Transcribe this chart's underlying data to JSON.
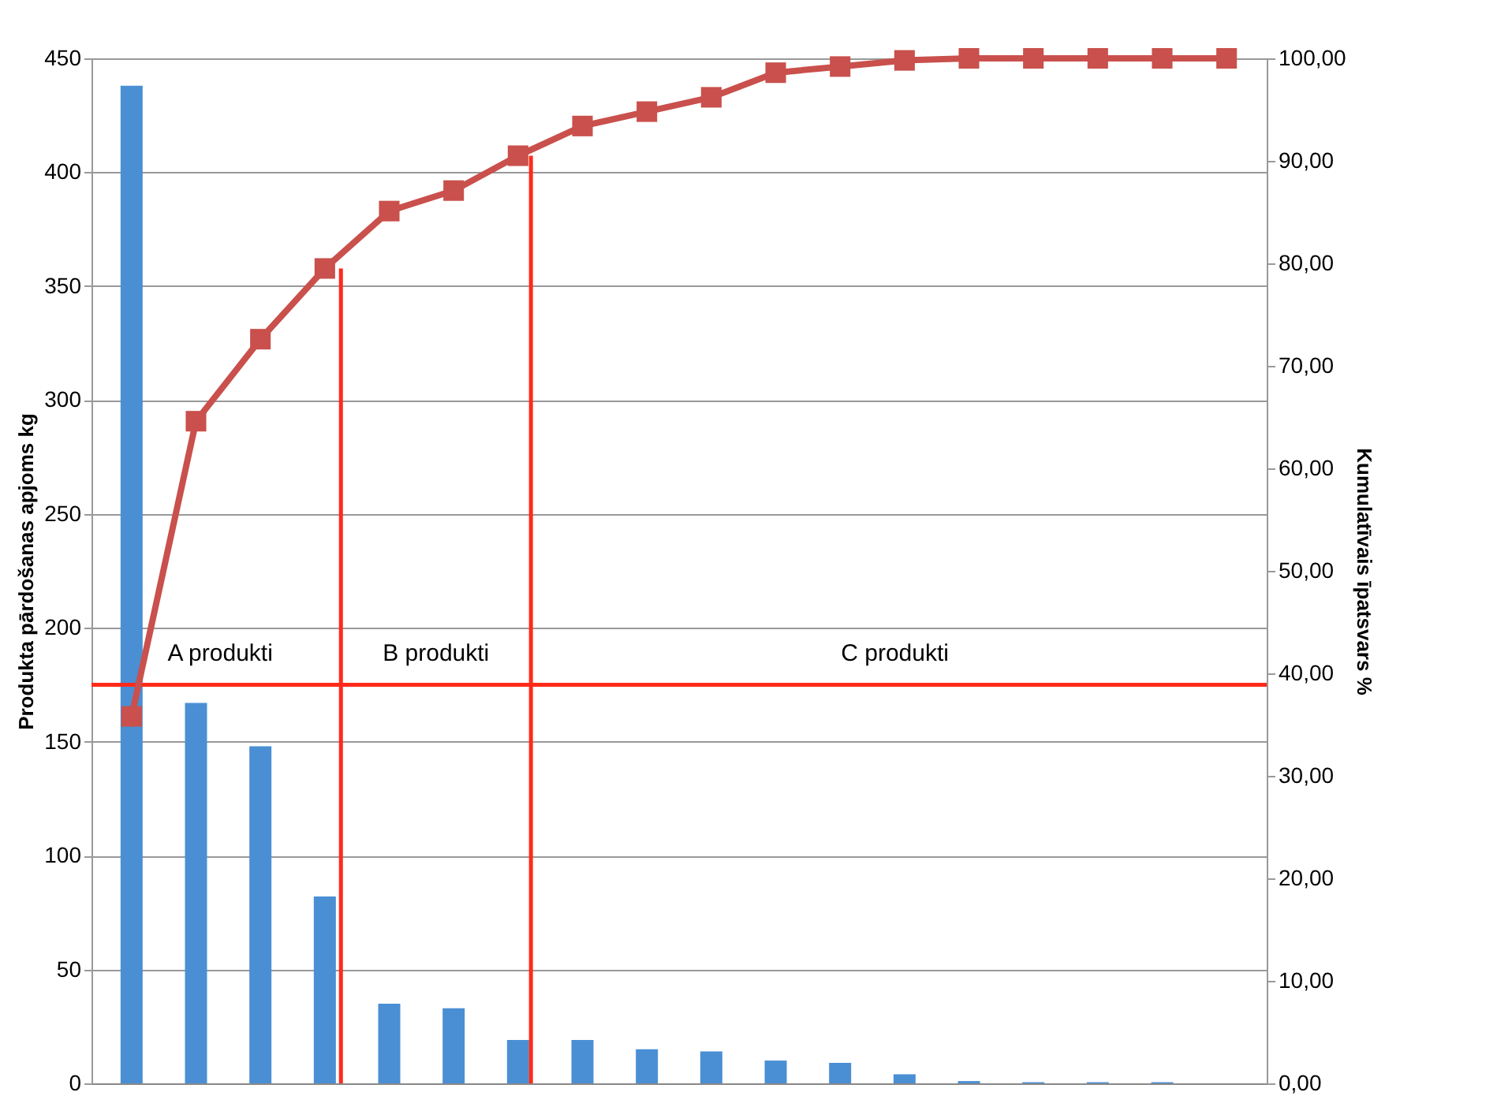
{
  "chart_data": {
    "type": "bar",
    "categories": [
      null,
      null,
      null,
      null,
      null,
      null,
      null,
      null,
      null,
      null,
      null,
      null,
      null,
      null,
      null,
      null,
      null,
      null
    ],
    "series": [
      {
        "color": "#4a8fd4",
        "values": [
          438,
          167,
          148,
          82,
          35,
          33,
          19,
          19,
          15,
          14,
          10,
          9,
          4,
          1,
          0.5,
          0.5,
          0.5,
          0
        ]
      },
      {
        "type": "line",
        "axis": "y2",
        "color": "#c9504c",
        "marker": "square",
        "values": [
          35.8,
          64.6,
          72.6,
          79.5,
          85.1,
          87.1,
          90.5,
          93.4,
          94.8,
          96.2,
          98.6,
          99.2,
          99.8,
          100,
          100,
          100,
          100,
          100
        ]
      }
    ],
    "ylabel": "Produkta pārdošanas apjoms kg",
    "y2label": "Kumulatīvais īpatsvars %",
    "ylim": [
      0,
      450
    ],
    "yticks": [
      0,
      50,
      100,
      150,
      200,
      250,
      300,
      350,
      400,
      450
    ],
    "y2lim": [
      0,
      100
    ],
    "y2ticks": [
      {
        "value": 0,
        "label": "0,00"
      },
      {
        "value": 10,
        "label": "10,00"
      },
      {
        "value": 20,
        "label": "20,00"
      },
      {
        "value": 30,
        "label": "30,00"
      },
      {
        "value": 40,
        "label": "40,00"
      },
      {
        "value": 50,
        "label": "50,00"
      },
      {
        "value": 60,
        "label": "60,00"
      },
      {
        "value": 70,
        "label": "70,00"
      },
      {
        "value": 80,
        "label": "80,00"
      },
      {
        "value": 90,
        "label": "90,00"
      },
      {
        "value": 100,
        "label": "100,00"
      }
    ],
    "ref_lines": [
      {
        "axis": "y",
        "value": 175,
        "color": "#ff2a1a"
      }
    ],
    "annotations": [
      "A produkti",
      "B produkti",
      "C produkti"
    ],
    "grid": "y",
    "tick_labels": "y",
    "line_style": "solid"
  }
}
